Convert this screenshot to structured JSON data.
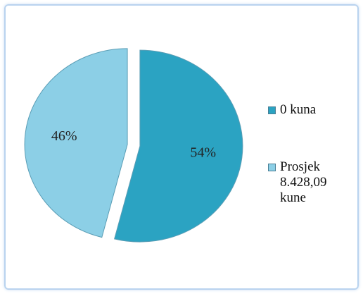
{
  "chart_data": {
    "type": "pie",
    "categories": [
      "0 kuna",
      "Prosjek 8.428,09 kune"
    ],
    "values": [
      54,
      46
    ],
    "value_labels": [
      "54%",
      "46%"
    ],
    "colors": [
      "#2ba3c2",
      "#8ccfe6"
    ],
    "legend": "right"
  }
}
